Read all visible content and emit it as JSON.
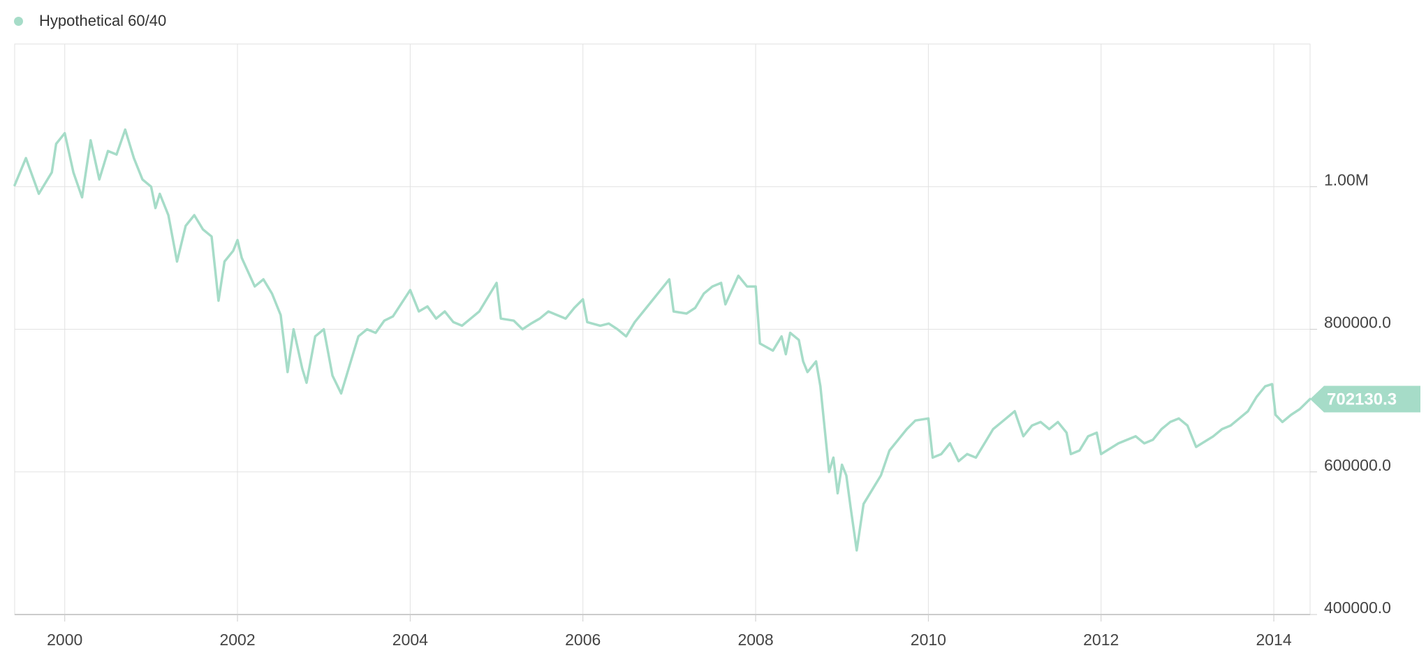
{
  "legend": {
    "label": "Hypothetical 60/40",
    "icon": "circle-marker-icon"
  },
  "colors": {
    "series": "#a6dcc8",
    "grid": "#e2e2e2",
    "axis_line": "#cccccc",
    "text": "#444444"
  },
  "chart_data": {
    "type": "line",
    "title": "",
    "xlabel": "",
    "ylabel": "",
    "x_range": [
      1999.42,
      2014.42
    ],
    "y_range": [
      400000,
      1200000
    ],
    "x_ticks": [
      2000,
      2002,
      2004,
      2006,
      2008,
      2010,
      2012,
      2014
    ],
    "x_tick_labels": [
      "2000",
      "2002",
      "2004",
      "2006",
      "2008",
      "2010",
      "2012",
      "2014"
    ],
    "y_ticks": [
      1000000,
      800000,
      600000,
      400000
    ],
    "y_tick_labels": [
      "1.00M",
      "800000.0",
      "600000.0",
      "400000.0"
    ],
    "y_axis_side": "right",
    "grid": true,
    "legend_position": "top-left",
    "last_value_label": "702130.3",
    "series": [
      {
        "name": "Hypothetical 60/40",
        "color": "#a6dcc8",
        "points": [
          [
            1999.42,
            1002000
          ],
          [
            1999.55,
            1040000
          ],
          [
            1999.7,
            990000
          ],
          [
            1999.85,
            1020000
          ],
          [
            1999.9,
            1060000
          ],
          [
            2000.0,
            1075000
          ],
          [
            2000.1,
            1020000
          ],
          [
            2000.2,
            985000
          ],
          [
            2000.3,
            1065000
          ],
          [
            2000.4,
            1010000
          ],
          [
            2000.5,
            1050000
          ],
          [
            2000.6,
            1045000
          ],
          [
            2000.7,
            1080000
          ],
          [
            2000.8,
            1040000
          ],
          [
            2000.9,
            1010000
          ],
          [
            2001.0,
            1000000
          ],
          [
            2001.05,
            970000
          ],
          [
            2001.1,
            990000
          ],
          [
            2001.2,
            960000
          ],
          [
            2001.3,
            895000
          ],
          [
            2001.4,
            945000
          ],
          [
            2001.5,
            960000
          ],
          [
            2001.6,
            940000
          ],
          [
            2001.7,
            930000
          ],
          [
            2001.78,
            840000
          ],
          [
            2001.85,
            895000
          ],
          [
            2001.95,
            910000
          ],
          [
            2002.0,
            925000
          ],
          [
            2002.05,
            900000
          ],
          [
            2002.2,
            860000
          ],
          [
            2002.3,
            870000
          ],
          [
            2002.4,
            850000
          ],
          [
            2002.5,
            820000
          ],
          [
            2002.58,
            740000
          ],
          [
            2002.65,
            800000
          ],
          [
            2002.75,
            745000
          ],
          [
            2002.8,
            725000
          ],
          [
            2002.9,
            790000
          ],
          [
            2003.0,
            800000
          ],
          [
            2003.1,
            735000
          ],
          [
            2003.2,
            710000
          ],
          [
            2003.3,
            750000
          ],
          [
            2003.4,
            790000
          ],
          [
            2003.5,
            800000
          ],
          [
            2003.6,
            795000
          ],
          [
            2003.7,
            812000
          ],
          [
            2003.8,
            818000
          ],
          [
            2004.0,
            855000
          ],
          [
            2004.1,
            825000
          ],
          [
            2004.2,
            832000
          ],
          [
            2004.3,
            815000
          ],
          [
            2004.4,
            825000
          ],
          [
            2004.5,
            810000
          ],
          [
            2004.6,
            805000
          ],
          [
            2004.7,
            815000
          ],
          [
            2004.8,
            825000
          ],
          [
            2004.9,
            845000
          ],
          [
            2005.0,
            865000
          ],
          [
            2005.05,
            815000
          ],
          [
            2005.2,
            812000
          ],
          [
            2005.3,
            800000
          ],
          [
            2005.4,
            808000
          ],
          [
            2005.5,
            815000
          ],
          [
            2005.6,
            825000
          ],
          [
            2005.7,
            820000
          ],
          [
            2005.8,
            815000
          ],
          [
            2005.9,
            830000
          ],
          [
            2006.0,
            842000
          ],
          [
            2006.05,
            810000
          ],
          [
            2006.2,
            805000
          ],
          [
            2006.3,
            808000
          ],
          [
            2006.4,
            800000
          ],
          [
            2006.5,
            790000
          ],
          [
            2006.6,
            810000
          ],
          [
            2006.7,
            825000
          ],
          [
            2006.8,
            840000
          ],
          [
            2006.9,
            855000
          ],
          [
            2007.0,
            870000
          ],
          [
            2007.05,
            825000
          ],
          [
            2007.2,
            822000
          ],
          [
            2007.3,
            830000
          ],
          [
            2007.4,
            850000
          ],
          [
            2007.5,
            860000
          ],
          [
            2007.6,
            865000
          ],
          [
            2007.65,
            835000
          ],
          [
            2007.8,
            875000
          ],
          [
            2007.9,
            860000
          ],
          [
            2008.0,
            860000
          ],
          [
            2008.05,
            780000
          ],
          [
            2008.2,
            770000
          ],
          [
            2008.3,
            790000
          ],
          [
            2008.35,
            765000
          ],
          [
            2008.4,
            795000
          ],
          [
            2008.5,
            785000
          ],
          [
            2008.55,
            755000
          ],
          [
            2008.6,
            740000
          ],
          [
            2008.7,
            755000
          ],
          [
            2008.75,
            720000
          ],
          [
            2008.8,
            660000
          ],
          [
            2008.85,
            600000
          ],
          [
            2008.9,
            620000
          ],
          [
            2008.95,
            570000
          ],
          [
            2009.0,
            610000
          ],
          [
            2009.05,
            595000
          ],
          [
            2009.1,
            550000
          ],
          [
            2009.17,
            490000
          ],
          [
            2009.25,
            555000
          ],
          [
            2009.35,
            575000
          ],
          [
            2009.45,
            595000
          ],
          [
            2009.55,
            630000
          ],
          [
            2009.65,
            645000
          ],
          [
            2009.75,
            660000
          ],
          [
            2009.85,
            672000
          ],
          [
            2010.0,
            675000
          ],
          [
            2010.05,
            620000
          ],
          [
            2010.15,
            625000
          ],
          [
            2010.25,
            640000
          ],
          [
            2010.35,
            615000
          ],
          [
            2010.45,
            625000
          ],
          [
            2010.55,
            620000
          ],
          [
            2010.65,
            640000
          ],
          [
            2010.75,
            660000
          ],
          [
            2010.85,
            670000
          ],
          [
            2011.0,
            685000
          ],
          [
            2011.1,
            650000
          ],
          [
            2011.2,
            665000
          ],
          [
            2011.3,
            670000
          ],
          [
            2011.4,
            660000
          ],
          [
            2011.5,
            670000
          ],
          [
            2011.6,
            655000
          ],
          [
            2011.65,
            625000
          ],
          [
            2011.75,
            630000
          ],
          [
            2011.85,
            650000
          ],
          [
            2011.95,
            655000
          ],
          [
            2012.0,
            625000
          ],
          [
            2012.2,
            640000
          ],
          [
            2012.4,
            650000
          ],
          [
            2012.5,
            640000
          ],
          [
            2012.6,
            645000
          ],
          [
            2012.7,
            660000
          ],
          [
            2012.8,
            670000
          ],
          [
            2012.9,
            675000
          ],
          [
            2013.0,
            665000
          ],
          [
            2013.1,
            635000
          ],
          [
            2013.3,
            650000
          ],
          [
            2013.4,
            660000
          ],
          [
            2013.5,
            665000
          ],
          [
            2013.6,
            675000
          ],
          [
            2013.7,
            685000
          ],
          [
            2013.8,
            705000
          ],
          [
            2013.9,
            720000
          ],
          [
            2013.98,
            723000
          ],
          [
            2014.02,
            680000
          ],
          [
            2014.1,
            670000
          ],
          [
            2014.2,
            680000
          ],
          [
            2014.3,
            688000
          ],
          [
            2014.42,
            702130
          ]
        ]
      }
    ]
  }
}
